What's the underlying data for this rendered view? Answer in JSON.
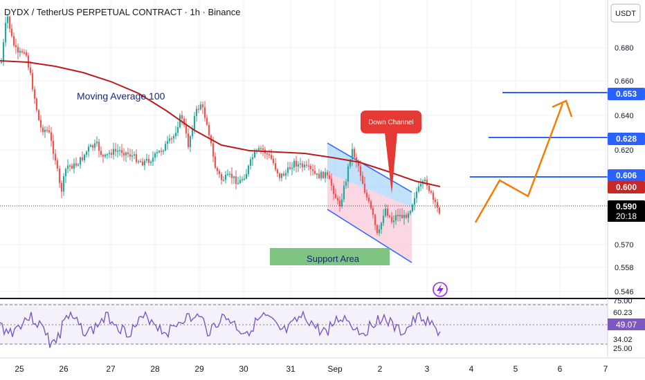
{
  "header": {
    "title": "DYDX / TetherUS PERPETUAL CONTRACT · 1h · Binance",
    "currency": "USDT"
  },
  "price_axis": {
    "ticks": [
      "0.680",
      "0.660",
      "0.640",
      "0.620",
      "0.600",
      "0.570",
      "0.558",
      "0.546"
    ]
  },
  "time_axis": {
    "ticks": [
      "25",
      "26",
      "27",
      "28",
      "29",
      "30",
      "31",
      "Sep",
      "2",
      "3",
      "4",
      "5",
      "6",
      "7"
    ]
  },
  "labels": {
    "ma_label": "Moving Average 100",
    "down_channel": "Down Channel",
    "support_area": "Support Area",
    "price_tags": [
      {
        "text": "0.653",
        "color": "#2962ff"
      },
      {
        "text": "0.628",
        "color": "#2962ff"
      },
      {
        "text": "0.606",
        "color": "#2962ff"
      },
      {
        "text": "0.600",
        "color": "#c62828"
      },
      {
        "text": "0.590",
        "color": "#000000"
      }
    ],
    "countdown": "20:18"
  },
  "rsi": {
    "ticks": [
      "75.00",
      "60.23",
      "34.02",
      "25.00"
    ],
    "value_tag": "49.07"
  },
  "colors": {
    "up_candle": "#26a69a",
    "down_candle": "#ef5350",
    "ma_line": "#b71c1c",
    "projection": "#f57c00",
    "resistance": "#2962ff",
    "rsi_line": "#7e57c2",
    "channel_fill_top": "#90caf9",
    "channel_fill_bottom": "#f8bbd0",
    "support_fill": "#66bb6a"
  },
  "icons": {
    "lightning": "lightning-icon"
  }
}
